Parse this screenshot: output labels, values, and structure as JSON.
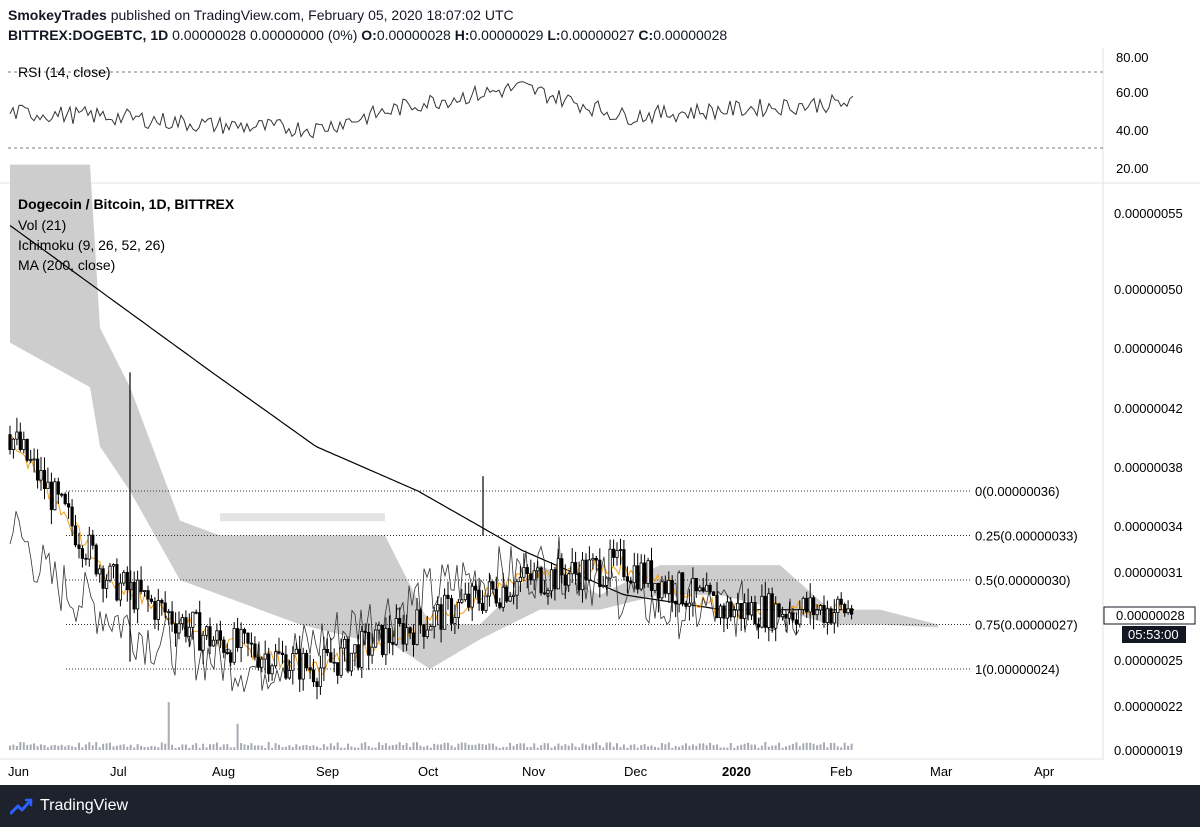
{
  "header": {
    "author": "SmokeyTrades",
    "published_text": " published on TradingView.com, February 05, 2020 18:07:02 UTC",
    "symbol": "BITTREX:DOGEBTC, 1D",
    "change": " 0.00000028 0.00000000 (0%) ",
    "o_label": "O:",
    "o_value": "0.00000028 ",
    "h_label": "H:",
    "h_value": "0.00000029 ",
    "l_label": "L:",
    "l_value": "0.00000027 ",
    "c_label": "C:",
    "c_value": "0.00000028"
  },
  "rsi_pane": {
    "title": "RSI (14, close)",
    "ticks": [
      "80.00",
      "60.00",
      "40.00",
      "20.00"
    ]
  },
  "legend": {
    "title": "Dogecoin / Bitcoin, 1D, BITTREX",
    "indicators": [
      "Vol (21)",
      "Ichimoku (9, 26, 52, 26)",
      "MA (200, close)"
    ]
  },
  "price_scale": [
    "0.00000055",
    "0.00000050",
    "0.00000046",
    "0.00000042",
    "0.00000038",
    "0.00000034",
    "0.00000031",
    "0.00000025",
    "0.00000022",
    "0.00000019"
  ],
  "last_price": {
    "price": "0.00000028",
    "countdown": "05:53:00"
  },
  "fib_levels": [
    {
      "label": "0(0.00000036)",
      "value": 3.6e-07
    },
    {
      "label": "0.25(0.00000033)",
      "value": 3.3e-07
    },
    {
      "label": "0.5(0.00000030)",
      "value": 3e-07
    },
    {
      "label": "0.75(0.00000027)",
      "value": 2.7e-07
    },
    {
      "label": "1(0.00000024)",
      "value": 2.4e-07
    }
  ],
  "time_axis": [
    "Jun",
    "Jul",
    "Aug",
    "Sep",
    "Oct",
    "Nov",
    "Dec",
    "2020",
    "Feb",
    "Mar",
    "Apr"
  ],
  "footer": {
    "brand": "TradingView"
  },
  "colors": {
    "candle": "#000000",
    "cloud": "#c8c8c8",
    "cloud_light": "#e4e4e4",
    "ma200": "#000000",
    "tenkan": "#f39c12",
    "kijun": "#555555",
    "lagging": "#333333",
    "rsi": "#333333",
    "brand_blue": "#2962ff",
    "footer_bg": "#1e222d"
  },
  "chart_data": {
    "type": "line",
    "title": "Dogecoin / Bitcoin, 1D, BITTREX",
    "x": [
      "Jun",
      "Jul",
      "Aug",
      "Sep",
      "Oct",
      "Nov",
      "Dec",
      "2020",
      "Feb"
    ],
    "series": [
      {
        "name": "DOGEBTC",
        "values": [
          4e-07,
          3e-07,
          2.6e-07,
          2.4e-07,
          2.7e-07,
          3e-07,
          3.1e-07,
          2.8e-07,
          2.8e-07
        ]
      },
      {
        "name": "MA (200, close)",
        "values": [
          5.4e-07,
          4.9e-07,
          4.4e-07,
          3.9e-07,
          3.6e-07,
          3.2e-07,
          2.9e-07,
          2.8e-07,
          2.8e-07
        ]
      },
      {
        "name": "RSI (14, close)",
        "values": [
          48,
          45,
          38,
          35,
          55,
          68,
          45,
          50,
          55
        ]
      }
    ],
    "ylim": [
      1.9e-07,
      5.8e-07
    ],
    "rsi_ylim": [
      20,
      80
    ],
    "last_close": 2.8e-07,
    "grid": false
  }
}
